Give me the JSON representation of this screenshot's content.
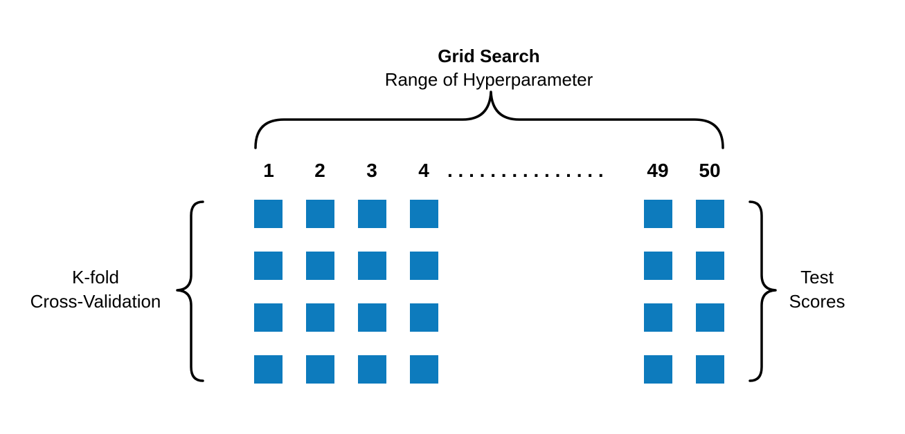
{
  "title": "Grid Search",
  "subtitle": "Range of Hyperparameter",
  "columns": [
    "1",
    "2",
    "3",
    "4",
    "49",
    "50"
  ],
  "ellipsis": ". . . . . . . . . . . . . . .",
  "rows": 4,
  "left_label": {
    "line1": "K-fold",
    "line2": "Cross-Validation"
  },
  "right_label": {
    "line1": "Test",
    "line2": "Scores"
  },
  "colors": {
    "cell": "#0d7bbd",
    "stroke": "#000000"
  }
}
